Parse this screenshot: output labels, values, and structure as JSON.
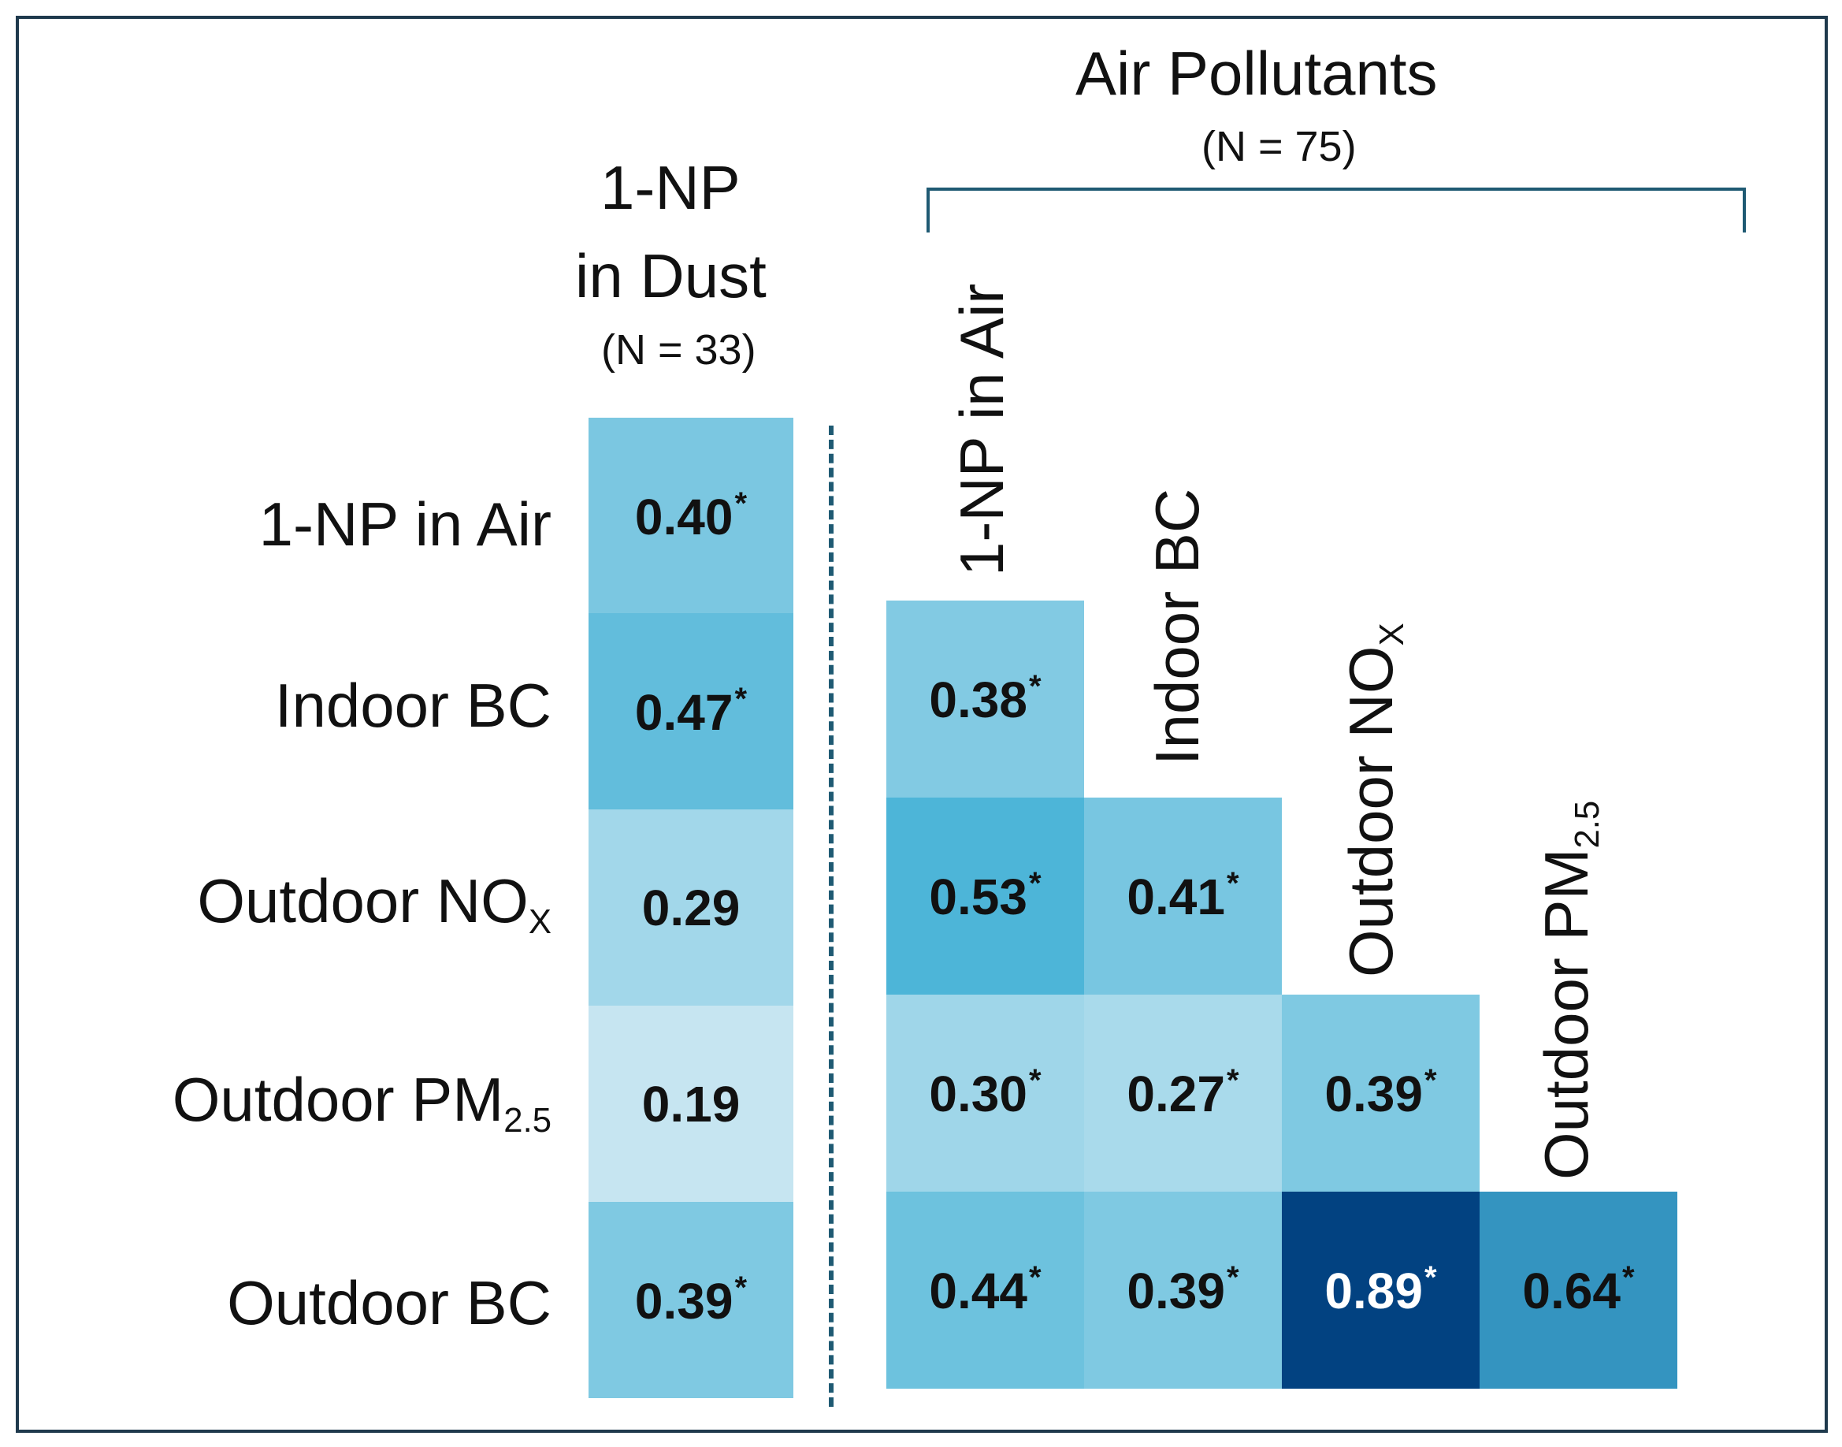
{
  "chart_data": {
    "type": "heatmap",
    "dust_block": {
      "title_line1": "1-NP",
      "title_line2": "in Dust",
      "n_label": "(N = 33)",
      "rows": [
        "1-NP in Air",
        "Indoor BC",
        "Outdoor NO",
        "Outdoor PM",
        "Outdoor BC"
      ],
      "values": [
        0.4,
        0.47,
        0.29,
        0.19,
        0.39
      ],
      "labels": [
        "0.40",
        "0.47",
        "0.29",
        "0.19",
        "0.39"
      ],
      "significant": [
        true,
        true,
        false,
        false,
        true
      ]
    },
    "air_block": {
      "title": "Air Pollutants",
      "n_label": "(N = 75)",
      "columns": [
        "1-NP in Air",
        "Indoor BC",
        "Outdoor  NO",
        "Outdoor PM"
      ],
      "rows": [
        "Indoor BC",
        "Outdoor NO",
        "Outdoor PM",
        "Outdoor BC"
      ],
      "cells": [
        {
          "row": 0,
          "col": 0,
          "value": 0.38,
          "label": "0.38",
          "significant": true
        },
        {
          "row": 1,
          "col": 0,
          "value": 0.53,
          "label": "0.53",
          "significant": true
        },
        {
          "row": 1,
          "col": 1,
          "value": 0.41,
          "label": "0.41",
          "significant": true
        },
        {
          "row": 2,
          "col": 0,
          "value": 0.3,
          "label": "0.30",
          "significant": true
        },
        {
          "row": 2,
          "col": 1,
          "value": 0.27,
          "label": "0.27",
          "significant": true
        },
        {
          "row": 2,
          "col": 2,
          "value": 0.39,
          "label": "0.39",
          "significant": true
        },
        {
          "row": 3,
          "col": 0,
          "value": 0.44,
          "label": "0.44",
          "significant": true
        },
        {
          "row": 3,
          "col": 1,
          "value": 0.39,
          "label": "0.39",
          "significant": true
        },
        {
          "row": 3,
          "col": 2,
          "value": 0.89,
          "label": "0.89",
          "significant": true
        },
        {
          "row": 3,
          "col": 3,
          "value": 0.64,
          "label": "0.64",
          "significant": true
        }
      ]
    },
    "subscripts": {
      "nox": "X",
      "pm": "2.5"
    },
    "significance_marker": "*",
    "colors": {
      "low": "#d4ebf4",
      "mid": "#46b2d6",
      "high": "#003f7f",
      "bracket": "#1f5a73"
    }
  }
}
